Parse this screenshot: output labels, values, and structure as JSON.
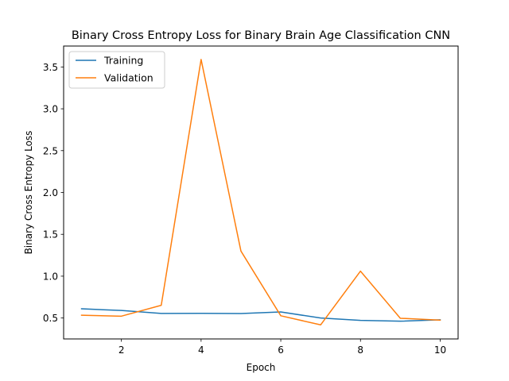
{
  "chart_data": {
    "type": "line",
    "title": "Binary Cross Entropy Loss for Binary Brain Age Classification CNN",
    "xlabel": "Epoch",
    "ylabel": "Binary Cross Entropy Loss",
    "x": [
      1,
      2,
      3,
      4,
      5,
      6,
      7,
      8,
      9,
      10
    ],
    "xlim": [
      0.55,
      10.45
    ],
    "ylim": [
      0.25,
      3.75
    ],
    "xticks": [
      2,
      4,
      6,
      8,
      10
    ],
    "xtick_labels": [
      "2",
      "4",
      "6",
      "8",
      "10"
    ],
    "yticks": [
      0.5,
      1.0,
      1.5,
      2.0,
      2.5,
      3.0,
      3.5
    ],
    "ytick_labels": [
      "0.5",
      "1.0",
      "1.5",
      "2.0",
      "2.5",
      "3.0",
      "3.5"
    ],
    "grid": false,
    "legend_position": "top-left",
    "series": [
      {
        "name": "Training",
        "color": "#1f77b4",
        "values": [
          0.61,
          0.59,
          0.555,
          0.556,
          0.553,
          0.572,
          0.5,
          0.472,
          0.462,
          0.478
        ]
      },
      {
        "name": "Validation",
        "color": "#ff7f0e",
        "values": [
          0.533,
          0.522,
          0.652,
          3.59,
          1.3,
          0.527,
          0.418,
          1.06,
          0.497,
          0.475
        ]
      }
    ]
  }
}
